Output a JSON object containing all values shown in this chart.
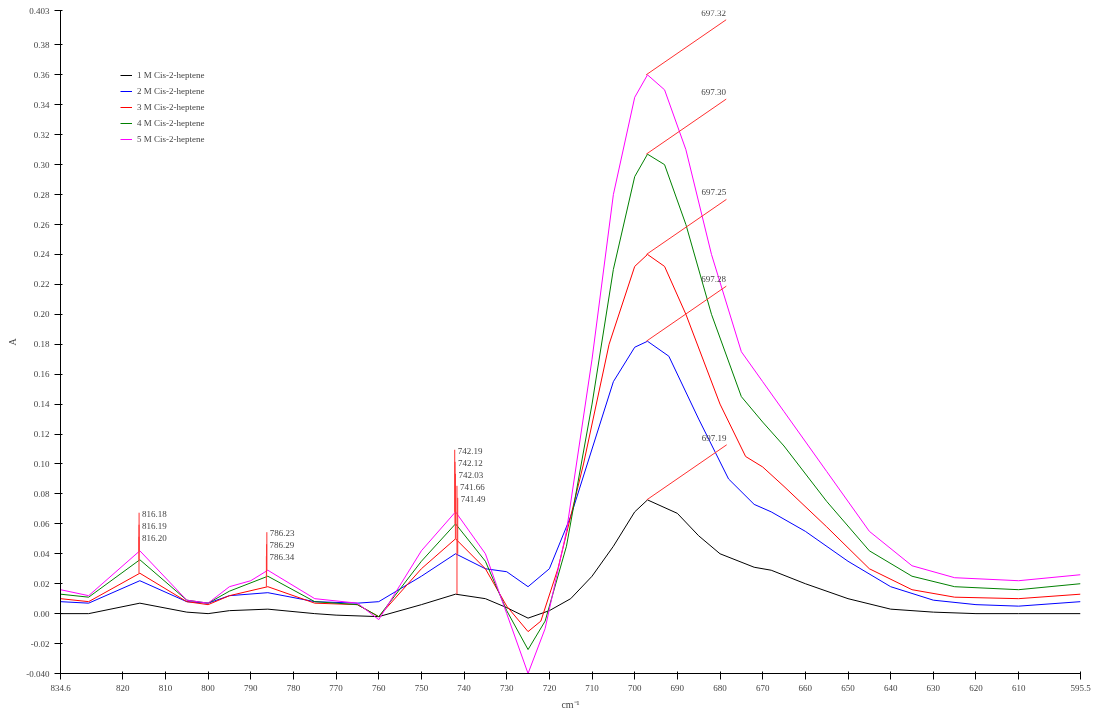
{
  "chart_data": {
    "type": "line",
    "xlabel": "cm⁻¹",
    "ylabel": "A",
    "xlim": [
      834.6,
      595.5
    ],
    "xticks": [
      834.6,
      820,
      810,
      800,
      790,
      780,
      770,
      760,
      750,
      740,
      730,
      720,
      710,
      700,
      690,
      680,
      670,
      660,
      650,
      640,
      630,
      620,
      610,
      595.5
    ],
    "ylim": [
      -0.04,
      0.403
    ],
    "yticks": [
      {
        "value": -0.04,
        "label": "-0.040"
      },
      {
        "value": -0.02,
        "label": "-0.02"
      },
      {
        "value": 0,
        "label": "0.00"
      },
      {
        "value": 0.02,
        "label": "0.02"
      },
      {
        "value": 0.04,
        "label": "0.04"
      },
      {
        "value": 0.06,
        "label": "0.06"
      },
      {
        "value": 0.08,
        "label": "0.08"
      },
      {
        "value": 0.1,
        "label": "0.10"
      },
      {
        "value": 0.12,
        "label": "0.12"
      },
      {
        "value": 0.14,
        "label": "0.14"
      },
      {
        "value": 0.16,
        "label": "0.16"
      },
      {
        "value": 0.18,
        "label": "0.18"
      },
      {
        "value": 0.2,
        "label": "0.20"
      },
      {
        "value": 0.22,
        "label": "0.22"
      },
      {
        "value": 0.24,
        "label": "0.24"
      },
      {
        "value": 0.26,
        "label": "0.26"
      },
      {
        "value": 0.28,
        "label": "0.28"
      },
      {
        "value": 0.3,
        "label": "0.30"
      },
      {
        "value": 0.32,
        "label": "0.32"
      },
      {
        "value": 0.34,
        "label": "0.34"
      },
      {
        "value": 0.36,
        "label": "0.36"
      },
      {
        "value": 0.38,
        "label": "0.38"
      },
      {
        "value": 0.403,
        "label": "0.403"
      }
    ],
    "grid": false,
    "legend": "top left",
    "marker": "none",
    "line_style": "solid",
    "series": [
      {
        "name": "1 M Cis-2-heptene",
        "color": "#000000",
        "x": [
          834.6,
          828,
          816,
          805,
          800,
          795,
          786,
          775,
          770,
          760,
          750,
          742,
          735,
          730,
          725,
          720,
          715,
          710,
          705,
          700,
          697,
          690,
          685,
          680,
          672,
          668,
          660,
          650,
          640,
          630,
          620,
          610,
          595.5
        ],
        "values": [
          0.0,
          0.0,
          0.007,
          0.001,
          0.0,
          0.002,
          0.003,
          0.0,
          -0.001,
          -0.002,
          0.006,
          0.013,
          0.01,
          0.004,
          -0.003,
          0.002,
          0.01,
          0.025,
          0.045,
          0.068,
          0.076,
          0.067,
          0.052,
          0.04,
          0.031,
          0.029,
          0.02,
          0.01,
          0.003,
          0.001,
          0.0,
          0.0,
          0.0
        ]
      },
      {
        "name": "2 M Cis-2-heptene",
        "color": "#0000ff",
        "x": [
          834.6,
          828,
          816,
          805,
          800,
          795,
          786,
          775,
          765,
          760,
          750,
          742,
          735,
          730,
          725,
          720,
          715,
          710,
          705,
          700,
          697,
          692,
          685,
          678,
          672,
          668,
          660,
          650,
          640,
          630,
          620,
          610,
          595.5
        ],
        "values": [
          0.008,
          0.007,
          0.022,
          0.008,
          0.007,
          0.012,
          0.014,
          0.008,
          0.007,
          0.008,
          0.025,
          0.04,
          0.03,
          0.028,
          0.018,
          0.03,
          0.065,
          0.11,
          0.155,
          0.178,
          0.182,
          0.172,
          0.13,
          0.09,
          0.073,
          0.068,
          0.055,
          0.035,
          0.018,
          0.009,
          0.006,
          0.005,
          0.008
        ]
      },
      {
        "name": "3 M Cis-2-heptene",
        "color": "#ff0000",
        "x": [
          834.6,
          828,
          816,
          805,
          800,
          795,
          786,
          775,
          765,
          760,
          750,
          742,
          735,
          730,
          725,
          722,
          718,
          712,
          706,
          700,
          697,
          693,
          688,
          680,
          674,
          670,
          665,
          655,
          645,
          635,
          625,
          610,
          595.5
        ],
        "values": [
          0.01,
          0.008,
          0.027,
          0.008,
          0.006,
          0.012,
          0.018,
          0.007,
          0.006,
          -0.002,
          0.03,
          0.05,
          0.03,
          0.005,
          -0.012,
          -0.005,
          0.03,
          0.1,
          0.18,
          0.232,
          0.24,
          0.232,
          0.2,
          0.14,
          0.105,
          0.098,
          0.085,
          0.058,
          0.03,
          0.016,
          0.011,
          0.01,
          0.013
        ]
      },
      {
        "name": "4 M Cis-2-heptene",
        "color": "#008000",
        "x": [
          834.6,
          828,
          816,
          805,
          800,
          795,
          786,
          775,
          765,
          760,
          750,
          742,
          735,
          730,
          725,
          721,
          716,
          710,
          705,
          700,
          697,
          693,
          688,
          682,
          675,
          670,
          665,
          655,
          645,
          635,
          625,
          610,
          595.5
        ],
        "values": [
          0.013,
          0.011,
          0.036,
          0.009,
          0.007,
          0.015,
          0.025,
          0.008,
          0.006,
          -0.002,
          0.035,
          0.06,
          0.035,
          0.002,
          -0.024,
          -0.005,
          0.045,
          0.14,
          0.23,
          0.292,
          0.307,
          0.3,
          0.26,
          0.2,
          0.145,
          0.128,
          0.112,
          0.075,
          0.042,
          0.025,
          0.018,
          0.016,
          0.02
        ]
      },
      {
        "name": "5 M Cis-2-heptene",
        "color": "#ff00ff",
        "x": [
          834.6,
          828,
          816,
          805,
          800,
          795,
          790,
          786,
          775,
          765,
          760,
          750,
          742,
          735,
          730,
          725,
          721,
          716,
          710,
          705,
          700,
          697,
          693,
          688,
          682,
          675,
          670,
          665,
          655,
          645,
          635,
          625,
          610,
          595.5
        ],
        "values": [
          0.016,
          0.012,
          0.042,
          0.009,
          0.007,
          0.018,
          0.022,
          0.029,
          0.01,
          0.007,
          -0.004,
          0.042,
          0.068,
          0.04,
          0.0,
          -0.04,
          -0.01,
          0.055,
          0.17,
          0.28,
          0.345,
          0.36,
          0.35,
          0.31,
          0.24,
          0.175,
          0.155,
          0.135,
          0.095,
          0.055,
          0.032,
          0.024,
          0.022,
          0.026
        ]
      }
    ],
    "annotations": [
      {
        "text": "816.18",
        "x": 816.18,
        "y": 0.042
      },
      {
        "text": "816.19",
        "x": 816.19,
        "y": 0.036
      },
      {
        "text": "816.20",
        "x": 816.2,
        "y": 0.027
      },
      {
        "text": "786.23",
        "x": 786.23,
        "y": 0.029
      },
      {
        "text": "786.29",
        "x": 786.29,
        "y": 0.025
      },
      {
        "text": "786.34",
        "x": 786.34,
        "y": 0.018
      },
      {
        "text": "742.19",
        "x": 742.19,
        "y": 0.068
      },
      {
        "text": "742.12",
        "x": 742.12,
        "y": 0.06
      },
      {
        "text": "742.03",
        "x": 742.03,
        "y": 0.05
      },
      {
        "text": "741.66",
        "x": 741.66,
        "y": 0.013
      },
      {
        "text": "741.49",
        "x": 741.49,
        "y": 0.04
      },
      {
        "text": "697.32",
        "x": 697.32,
        "y": 0.36
      },
      {
        "text": "697.30",
        "x": 697.3,
        "y": 0.307
      },
      {
        "text": "697.25",
        "x": 697.25,
        "y": 0.24
      },
      {
        "text": "697.28",
        "x": 697.28,
        "y": 0.182
      },
      {
        "text": "697.19",
        "x": 697.19,
        "y": 0.076
      }
    ]
  }
}
